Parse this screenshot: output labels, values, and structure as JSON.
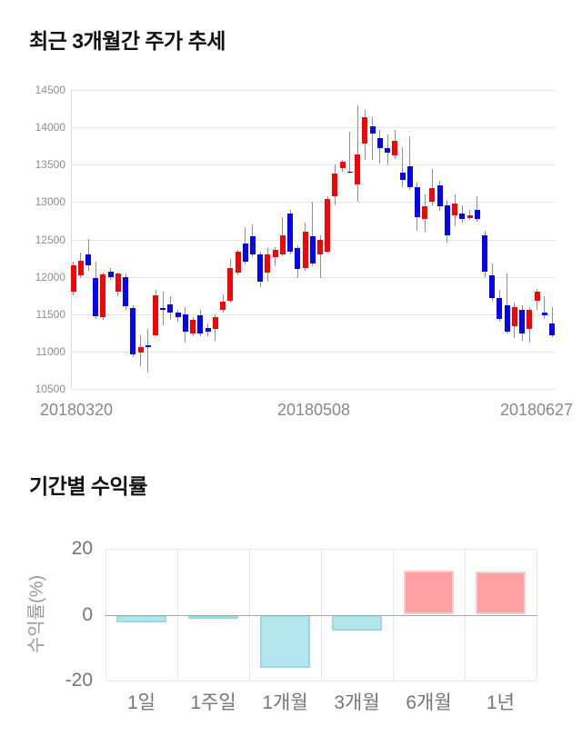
{
  "chart_data": [
    {
      "type": "candlestick",
      "title": "최근 3개월간 주가 추세",
      "ylim": [
        10500,
        14500
      ],
      "y_ticks": [
        14500,
        14000,
        13500,
        13000,
        12500,
        12000,
        11500,
        11000,
        10500
      ],
      "x_labels": [
        "20180320",
        "20180508",
        "20180627"
      ],
      "grid": "horizontal",
      "up_color": "#f30505",
      "down_color": "#0505f3",
      "wick_color": "#909090",
      "columns": [
        "open",
        "close",
        "high",
        "low"
      ],
      "candles": [
        [
          11800,
          12160,
          12200,
          11750
        ],
        [
          12020,
          12210,
          12320,
          11980
        ],
        [
          12300,
          12160,
          12510,
          12080
        ],
        [
          11980,
          11470,
          12200,
          11440
        ],
        [
          11460,
          12030,
          12060,
          11420
        ],
        [
          12070,
          12000,
          12120,
          11960
        ],
        [
          11800,
          12040,
          12060,
          11740
        ],
        [
          12000,
          11600,
          12040,
          11560
        ],
        [
          11580,
          10960,
          11620,
          10920
        ],
        [
          10980,
          11060,
          11220,
          10800
        ],
        [
          11080,
          11070,
          11300,
          10720
        ],
        [
          11220,
          11750,
          11820,
          11200
        ],
        [
          11580,
          11570,
          11800,
          11350
        ],
        [
          11630,
          11520,
          11740,
          11420
        ],
        [
          11520,
          11460,
          11560,
          11400
        ],
        [
          11500,
          11260,
          11600,
          11120
        ],
        [
          11240,
          11420,
          11460,
          11200
        ],
        [
          11480,
          11240,
          11560,
          11200
        ],
        [
          11320,
          11260,
          11380,
          11200
        ],
        [
          11300,
          11460,
          11500,
          11140
        ],
        [
          11560,
          11670,
          11760,
          11520
        ],
        [
          11680,
          12120,
          12240,
          11660
        ],
        [
          12060,
          12340,
          12360,
          12020
        ],
        [
          12440,
          12200,
          12660,
          12160
        ],
        [
          12540,
          12300,
          12700,
          12260
        ],
        [
          12300,
          11940,
          12340,
          11860
        ],
        [
          12060,
          12300,
          12390,
          11940
        ],
        [
          12260,
          12360,
          12400,
          12140
        ],
        [
          12300,
          12560,
          12800,
          12280
        ],
        [
          12850,
          12340,
          12900,
          12300
        ],
        [
          12380,
          12100,
          12420,
          11980
        ],
        [
          12120,
          12600,
          12720,
          12080
        ],
        [
          12540,
          12180,
          13000,
          12140
        ],
        [
          12300,
          12500,
          12560,
          11980
        ],
        [
          12340,
          13040,
          13080,
          12320
        ],
        [
          13080,
          13380,
          13500,
          12960
        ],
        [
          13460,
          13540,
          13560,
          13400
        ],
        [
          13410,
          13400,
          13940,
          13380
        ],
        [
          13240,
          13640,
          14290,
          13000
        ],
        [
          13780,
          14140,
          14230,
          13560
        ],
        [
          14020,
          13920,
          14140,
          13560
        ],
        [
          13860,
          13720,
          13960,
          13520
        ],
        [
          13720,
          13660,
          13900,
          13500
        ],
        [
          13620,
          13820,
          13960,
          13580
        ],
        [
          13400,
          13300,
          13740,
          13200
        ],
        [
          13480,
          13200,
          13880,
          13160
        ],
        [
          13200,
          12800,
          13260,
          12620
        ],
        [
          12780,
          12950,
          13100,
          12600
        ],
        [
          13000,
          13190,
          13440,
          12960
        ],
        [
          13230,
          12940,
          13280,
          12880
        ],
        [
          12960,
          12560,
          13030,
          12460
        ],
        [
          12820,
          12980,
          13100,
          12680
        ],
        [
          12850,
          12770,
          12960,
          12730
        ],
        [
          12790,
          12820,
          12900,
          12760
        ],
        [
          12900,
          12770,
          13080,
          12740
        ],
        [
          12560,
          12070,
          12620,
          12000
        ],
        [
          12020,
          11720,
          12180,
          11680
        ],
        [
          11720,
          11440,
          11820,
          11400
        ],
        [
          11620,
          11260,
          12040,
          11240
        ],
        [
          11340,
          11600,
          11650,
          11180
        ],
        [
          11560,
          11240,
          11620,
          11140
        ],
        [
          11300,
          11560,
          11600,
          11120
        ],
        [
          11680,
          11800,
          11840,
          11560
        ],
        [
          11520,
          11480,
          11740,
          11440
        ],
        [
          11380,
          11220,
          11600,
          11190
        ]
      ]
    },
    {
      "type": "bar",
      "title": "기간별 수익률",
      "ylabel": "수익률(%)",
      "ylim": [
        -20,
        20
      ],
      "y_ticks": [
        20,
        0,
        -20
      ],
      "grid": "box-with-verticals",
      "categories": [
        "1일",
        "1주일",
        "1개월",
        "3개월",
        "6개월",
        "1년"
      ],
      "values": [
        -2.4,
        -1.3,
        -16,
        -4.7,
        13.5,
        13
      ],
      "positive_color": "#ff9fa2",
      "positive_border": "#eed0d0",
      "negative_color": "#b4e6f0",
      "negative_border": "#9ed7e4",
      "zero_line_color": "#a6a6a6"
    }
  ]
}
